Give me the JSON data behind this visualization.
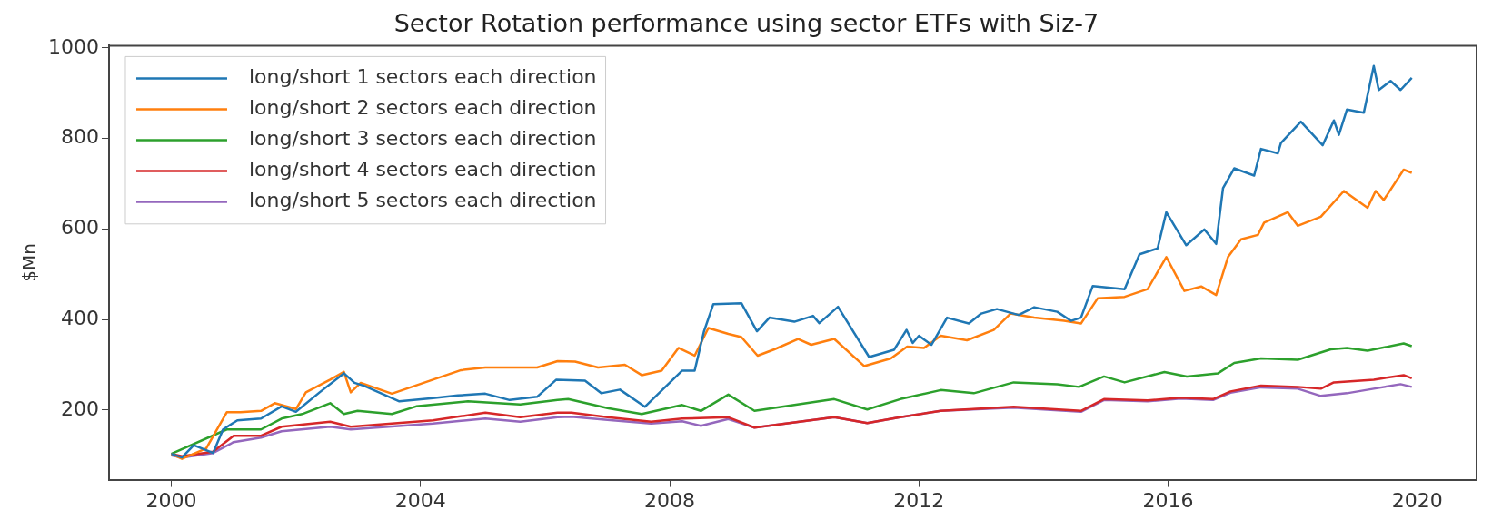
{
  "chart_data": {
    "type": "line",
    "title": "Sector Rotation performance using sector ETFs with Siz-7",
    "ylabel": "$Mn",
    "xlim": [
      1999.0,
      2020.95
    ],
    "xticks": [
      2000,
      2004,
      2008,
      2012,
      2016,
      2020
    ],
    "ylim": [
      46,
      1005
    ],
    "yticks": [
      200,
      400,
      600,
      800,
      1000
    ],
    "grid": false,
    "legend": "top left",
    "marker": "none",
    "line_style": "solid",
    "series": [
      {
        "name": "long/short 1 sectors each direction",
        "color": "#1f77b4",
        "x": [
          2000.0,
          2000.17,
          2000.36,
          2000.67,
          2000.83,
          2001.06,
          2001.44,
          2001.77,
          2002.0,
          2002.38,
          2002.77,
          2002.94,
          2003.1,
          2003.66,
          2004.2,
          2004.6,
          2005.04,
          2005.43,
          2005.87,
          2006.18,
          2006.64,
          2006.9,
          2007.2,
          2007.6,
          2008.2,
          2008.4,
          2008.55,
          2008.7,
          2009.15,
          2009.4,
          2009.6,
          2010.0,
          2010.3,
          2010.4,
          2010.7,
          2011.2,
          2011.6,
          2011.8,
          2011.9,
          2012.0,
          2012.2,
          2012.45,
          2012.8,
          2013.0,
          2013.25,
          2013.6,
          2013.85,
          2014.22,
          2014.44,
          2014.6,
          2014.79,
          2015.3,
          2015.54,
          2015.83,
          2015.97,
          2016.29,
          2016.58,
          2016.77,
          2016.88,
          2017.06,
          2017.38,
          2017.49,
          2017.76,
          2017.81,
          2018.13,
          2018.48,
          2018.66,
          2018.74,
          2018.87,
          2019.14,
          2019.3,
          2019.38,
          2019.57,
          2019.73,
          2019.91
        ],
        "values": [
          103,
          95,
          122,
          105,
          157,
          177,
          181,
          208,
          196,
          239,
          281,
          260,
          253,
          219,
          226,
          232,
          236,
          222,
          229,
          267,
          265,
          237,
          245,
          207,
          287,
          287,
          374,
          434,
          436,
          374,
          404,
          395,
          408,
          392,
          428,
          317,
          333,
          377,
          348,
          364,
          344,
          404,
          391,
          413,
          423,
          410,
          427,
          417,
          397,
          404,
          474,
          467,
          544,
          557,
          637,
          564,
          599,
          567,
          690,
          734,
          718,
          777,
          767,
          790,
          837,
          785,
          840,
          808,
          864,
          857,
          960,
          907,
          927,
          907,
          934
        ]
      },
      {
        "name": "long/short 2 sectors each direction",
        "color": "#ff7f0e",
        "x": [
          2000.0,
          2000.17,
          2000.56,
          2000.89,
          2001.11,
          2001.44,
          2001.66,
          2002.0,
          2002.16,
          2002.55,
          2002.77,
          2002.88,
          2003.04,
          2003.54,
          2004.2,
          2004.65,
          2005.04,
          2005.87,
          2006.2,
          2006.48,
          2006.85,
          2007.28,
          2007.55,
          2007.87,
          2008.14,
          2008.4,
          2008.62,
          2008.94,
          2009.15,
          2009.41,
          2009.68,
          2010.06,
          2010.27,
          2010.64,
          2011.12,
          2011.55,
          2011.81,
          2012.08,
          2012.35,
          2012.77,
          2013.2,
          2013.47,
          2013.85,
          2014.33,
          2014.6,
          2014.87,
          2015.3,
          2015.67,
          2015.97,
          2016.26,
          2016.53,
          2016.77,
          2016.96,
          2017.17,
          2017.44,
          2017.54,
          2017.92,
          2018.08,
          2018.45,
          2018.82,
          2019.2,
          2019.33,
          2019.46,
          2019.78,
          2019.91
        ],
        "values": [
          103,
          92,
          115,
          195,
          195,
          198,
          215,
          202,
          239,
          267,
          284,
          239,
          260,
          236,
          267,
          288,
          294,
          294,
          308,
          307,
          294,
          300,
          277,
          287,
          337,
          320,
          381,
          368,
          361,
          320,
          334,
          357,
          344,
          357,
          297,
          314,
          340,
          337,
          364,
          354,
          377,
          413,
          404,
          397,
          391,
          447,
          450,
          467,
          538,
          463,
          473,
          454,
          538,
          577,
          587,
          614,
          637,
          607,
          627,
          684,
          647,
          684,
          664,
          731,
          724
        ]
      },
      {
        "name": "long/short 3 sectors each direction",
        "color": "#2ca02c",
        "x": [
          2000.0,
          2000.89,
          2001.44,
          2001.77,
          2002.1,
          2002.55,
          2002.77,
          2002.99,
          2003.54,
          2003.93,
          2004.76,
          2005.6,
          2006.2,
          2006.37,
          2007.0,
          2007.55,
          2008.2,
          2008.5,
          2008.94,
          2009.36,
          2010.64,
          2011.17,
          2011.7,
          2012.35,
          2012.88,
          2013.52,
          2014.22,
          2014.57,
          2014.97,
          2015.3,
          2015.94,
          2016.3,
          2016.8,
          2017.06,
          2017.49,
          2018.08,
          2018.61,
          2018.87,
          2019.2,
          2019.78,
          2019.91
        ],
        "values": [
          103,
          157,
          157,
          181,
          191,
          215,
          191,
          198,
          191,
          208,
          219,
          212,
          222,
          224,
          204,
          191,
          211,
          198,
          234,
          198,
          224,
          201,
          224,
          244,
          237,
          261,
          257,
          251,
          274,
          261,
          284,
          274,
          281,
          304,
          314,
          311,
          334,
          337,
          331,
          347,
          341
        ]
      },
      {
        "name": "long/short 4 sectors each direction",
        "color": "#d62728",
        "x": [
          2000.0,
          2000.17,
          2000.67,
          2001.0,
          2001.44,
          2001.77,
          2002.55,
          2002.88,
          2004.2,
          2005.04,
          2005.6,
          2006.2,
          2006.42,
          2007.0,
          2007.7,
          2008.2,
          2008.94,
          2009.36,
          2010.64,
          2011.17,
          2011.7,
          2012.35,
          2013.52,
          2014.6,
          2014.97,
          2015.67,
          2016.2,
          2016.72,
          2017.0,
          2017.49,
          2018.08,
          2018.45,
          2018.66,
          2019.3,
          2019.78,
          2019.91
        ],
        "values": [
          103,
          98,
          108,
          143,
          143,
          163,
          174,
          163,
          177,
          194,
          184,
          194,
          194,
          184,
          174,
          181,
          184,
          161,
          184,
          171,
          184,
          198,
          207,
          198,
          224,
          221,
          227,
          224,
          241,
          254,
          251,
          247,
          261,
          267,
          277,
          270
        ]
      },
      {
        "name": "long/short 5 sectors each direction",
        "color": "#9467bd",
        "x": [
          2000.0,
          2000.17,
          2000.67,
          2001.0,
          2001.44,
          2001.77,
          2002.55,
          2002.88,
          2004.2,
          2005.04,
          2005.6,
          2006.2,
          2006.42,
          2007.0,
          2007.7,
          2008.2,
          2008.5,
          2008.94,
          2009.36,
          2010.64,
          2011.17,
          2011.7,
          2012.35,
          2013.52,
          2014.6,
          2014.97,
          2015.67,
          2016.2,
          2016.72,
          2017.0,
          2017.49,
          2018.08,
          2018.45,
          2018.87,
          2019.3,
          2019.73,
          2019.91
        ],
        "values": [
          100,
          95,
          105,
          129,
          139,
          153,
          163,
          157,
          170,
          181,
          174,
          184,
          185,
          178,
          170,
          175,
          165,
          180,
          161,
          184,
          171,
          184,
          198,
          205,
          196,
          222,
          219,
          225,
          222,
          238,
          250,
          247,
          231,
          237,
          247,
          257,
          251
        ]
      }
    ]
  }
}
